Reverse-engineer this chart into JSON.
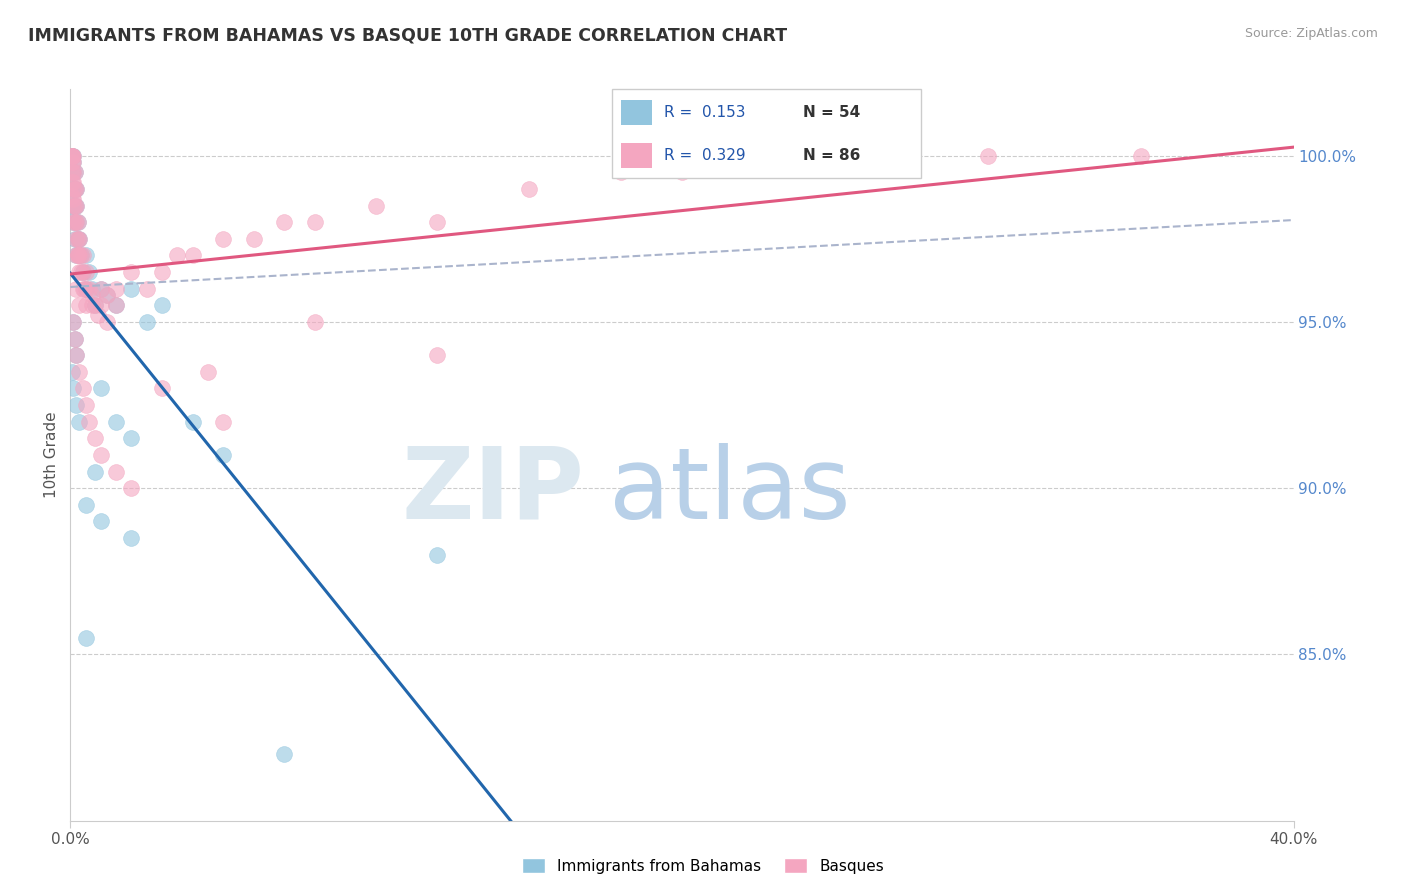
{
  "title": "IMMIGRANTS FROM BAHAMAS VS BASQUE 10TH GRADE CORRELATION CHART",
  "source_text": "Source: ZipAtlas.com",
  "ylabel": "10th Grade",
  "xlim": [
    0.0,
    40.0
  ],
  "ylim": [
    80.0,
    102.0
  ],
  "y_tick_vals": [
    85.0,
    90.0,
    95.0,
    100.0
  ],
  "y_tick_labels": [
    "85.0%",
    "90.0%",
    "95.0%",
    "100.0%"
  ],
  "x_tick_vals": [
    0.0,
    40.0
  ],
  "x_tick_labels": [
    "0.0%",
    "40.0%"
  ],
  "legend_r1": "R =  0.153",
  "legend_n1": "N = 54",
  "legend_r2": "R =  0.329",
  "legend_n2": "N = 86",
  "series1_label": "Immigrants from Bahamas",
  "series2_label": "Basques",
  "series1_color": "#92c5de",
  "series2_color": "#f4a6c0",
  "trend1_color": "#2166ac",
  "trend2_color": "#e05880",
  "dashed_color": "#aab4cc",
  "watermark_zip_color": "#dce8f0",
  "watermark_atlas_color": "#b8d0e8",
  "bahamas_x": [
    0.05,
    0.05,
    0.05,
    0.05,
    0.1,
    0.1,
    0.1,
    0.1,
    0.1,
    0.1,
    0.15,
    0.15,
    0.15,
    0.15,
    0.2,
    0.2,
    0.2,
    0.2,
    0.25,
    0.25,
    0.3,
    0.3,
    0.35,
    0.4,
    0.5,
    0.5,
    0.6,
    0.7,
    0.8,
    1.0,
    1.2,
    1.5,
    2.0,
    2.5,
    3.0,
    0.1,
    0.15,
    0.2,
    0.05,
    0.1,
    0.2,
    0.3,
    1.0,
    1.5,
    2.0,
    4.0,
    5.0,
    0.8,
    0.5,
    1.0,
    2.0,
    12.0,
    0.5,
    7.0
  ],
  "bahamas_y": [
    100.0,
    99.5,
    99.0,
    98.5,
    100.0,
    99.8,
    99.5,
    99.0,
    98.5,
    98.0,
    99.5,
    99.0,
    98.5,
    97.5,
    99.0,
    98.5,
    98.0,
    97.0,
    98.0,
    97.5,
    97.5,
    97.0,
    97.0,
    96.5,
    97.0,
    96.0,
    96.5,
    96.0,
    95.5,
    96.0,
    95.8,
    95.5,
    96.0,
    95.0,
    95.5,
    95.0,
    94.5,
    94.0,
    93.5,
    93.0,
    92.5,
    92.0,
    93.0,
    92.0,
    91.5,
    92.0,
    91.0,
    90.5,
    89.5,
    89.0,
    88.5,
    88.0,
    85.5,
    82.0
  ],
  "basque_x": [
    0.05,
    0.05,
    0.05,
    0.05,
    0.05,
    0.05,
    0.05,
    0.1,
    0.1,
    0.1,
    0.1,
    0.1,
    0.1,
    0.1,
    0.1,
    0.15,
    0.15,
    0.15,
    0.15,
    0.2,
    0.2,
    0.2,
    0.2,
    0.2,
    0.25,
    0.25,
    0.25,
    0.3,
    0.3,
    0.3,
    0.35,
    0.4,
    0.4,
    0.4,
    0.5,
    0.5,
    0.5,
    0.6,
    0.7,
    0.8,
    0.9,
    1.0,
    1.0,
    1.2,
    1.5,
    1.5,
    2.0,
    2.5,
    3.0,
    3.5,
    4.0,
    5.0,
    6.0,
    7.0,
    8.0,
    10.0,
    12.0,
    15.0,
    18.0,
    20.0,
    25.0,
    30.0,
    35.0,
    0.2,
    0.3,
    0.1,
    0.15,
    0.2,
    0.3,
    0.4,
    0.5,
    0.6,
    0.8,
    1.0,
    1.5,
    2.0,
    3.0,
    5.0,
    8.0,
    12.0,
    0.25,
    0.35,
    0.45,
    0.7,
    1.2,
    4.5
  ],
  "basque_y": [
    100.0,
    100.0,
    100.0,
    99.8,
    99.5,
    99.2,
    98.8,
    100.0,
    99.8,
    99.5,
    99.2,
    99.0,
    98.7,
    98.5,
    98.0,
    99.5,
    99.0,
    98.5,
    98.0,
    99.0,
    98.5,
    98.0,
    97.5,
    97.0,
    98.0,
    97.5,
    97.0,
    97.5,
    97.0,
    96.5,
    97.0,
    97.0,
    96.5,
    96.0,
    96.5,
    96.0,
    95.5,
    96.0,
    95.8,
    95.5,
    95.2,
    96.0,
    95.5,
    95.8,
    96.0,
    95.5,
    96.5,
    96.0,
    96.5,
    97.0,
    97.0,
    97.5,
    97.5,
    98.0,
    98.0,
    98.5,
    98.0,
    99.0,
    99.5,
    99.5,
    100.0,
    100.0,
    100.0,
    96.0,
    95.5,
    95.0,
    94.5,
    94.0,
    93.5,
    93.0,
    92.5,
    92.0,
    91.5,
    91.0,
    90.5,
    90.0,
    93.0,
    92.0,
    95.0,
    94.0,
    97.0,
    96.5,
    96.0,
    95.5,
    95.0,
    93.5
  ]
}
